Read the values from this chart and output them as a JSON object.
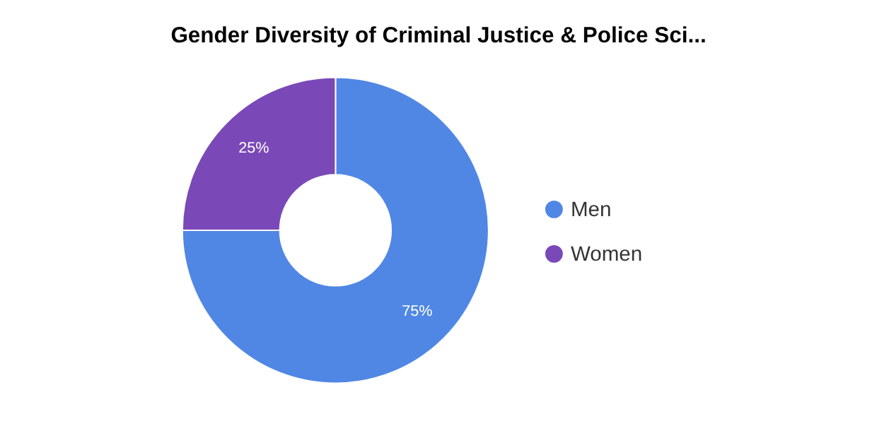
{
  "chart_data": {
    "type": "donut",
    "title": "Gender Diversity of Criminal Justice & Police Sci...",
    "categories": [
      "Men",
      "Women"
    ],
    "values": [
      75,
      25
    ],
    "colors": [
      "#5087e5",
      "#7a49b7"
    ],
    "value_labels": [
      "75%",
      "25%"
    ],
    "legend": "right"
  }
}
